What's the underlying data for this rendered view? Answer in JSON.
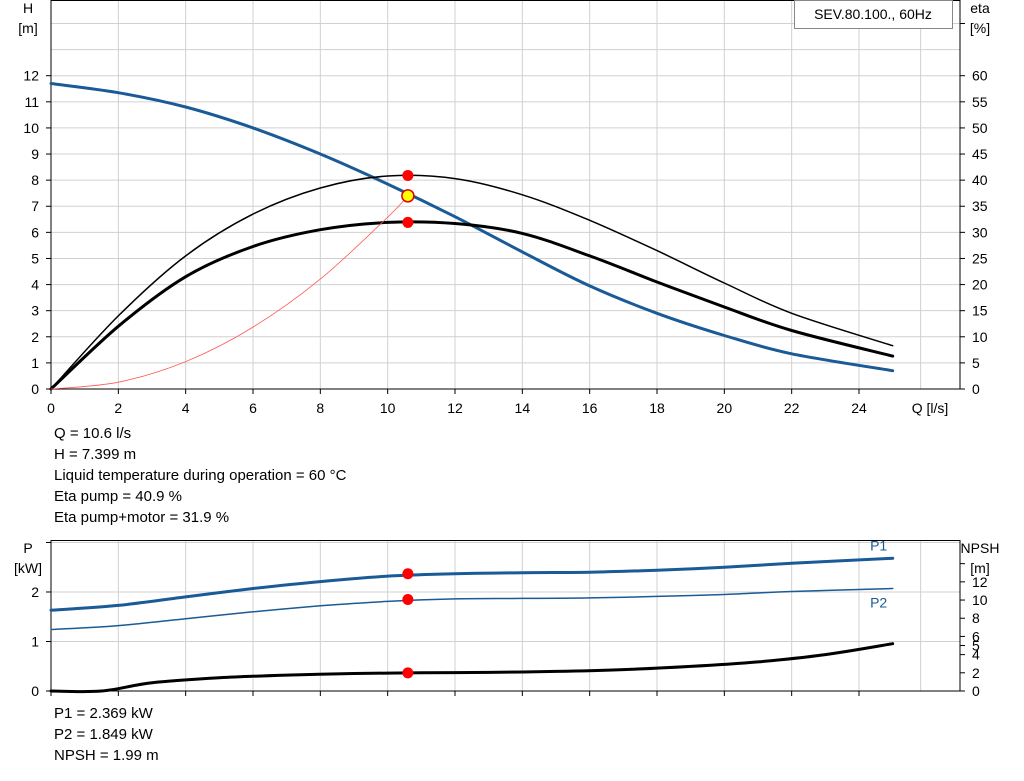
{
  "title_box": "SEV.80.100., 60Hz",
  "info_lines": [
    "Q = 10.6 l/s",
    "H = 7.399 m",
    "Liquid temperature during operation = 60 °C",
    "Eta pump = 40.9 %",
    "Eta pump+motor = 31.9 %"
  ],
  "bottom_info_lines": [
    "P1 = 2.369 kW",
    "P2 = 1.849 kW",
    "NPSH = 1.99 m"
  ],
  "colors": {
    "head": "#1a5a96",
    "eta": "#000000",
    "system": "#ff5a5a",
    "power": "#1a5a96",
    "npsh": "#000000",
    "marker": "#ff0000",
    "duty": "#ffff00",
    "grid": "#d0d0d0"
  },
  "chart_data": [
    {
      "type": "line",
      "name": "head-efficiency",
      "x_label": "Q [l/s]",
      "x_ticks": [
        0,
        2,
        4,
        6,
        8,
        10,
        12,
        14,
        16,
        18,
        20,
        22,
        24
      ],
      "xlim": [
        0,
        27
      ],
      "y_left_label": [
        "H",
        "[m]"
      ],
      "y_left_ticks": [
        0,
        1,
        2,
        3,
        4,
        5,
        6,
        7,
        8,
        9,
        10,
        11,
        12
      ],
      "y_left_lim": [
        0,
        14.9
      ],
      "y_right_label": [
        "eta",
        "[%]"
      ],
      "y_right_ticks": [
        0,
        5,
        10,
        15,
        20,
        25,
        30,
        35,
        40,
        45,
        50,
        55,
        60
      ],
      "y_right_lim": [
        0,
        74.5
      ],
      "grid": true,
      "series": [
        {
          "key": "head",
          "axis": "left",
          "width": 3,
          "x": [
            0,
            2,
            4,
            6,
            8,
            10,
            12,
            14,
            16,
            18,
            20,
            22,
            25
          ],
          "y": [
            11.7,
            11.35,
            10.8,
            10.0,
            9.0,
            7.85,
            6.6,
            5.25,
            3.95,
            2.9,
            2.05,
            1.35,
            0.7
          ]
        },
        {
          "key": "eta",
          "axis": "right",
          "width": 1.5,
          "x": [
            0,
            2,
            4,
            6,
            8,
            10,
            12,
            14,
            16,
            18,
            20,
            22,
            25
          ],
          "y": [
            0,
            14,
            25.5,
            33.5,
            38.5,
            40.8,
            40.3,
            37.2,
            32.3,
            26.5,
            20.3,
            14.5,
            8.3
          ]
        },
        {
          "key": "eta",
          "axis": "right",
          "width": 3,
          "x": [
            0,
            2,
            4,
            6,
            8,
            10,
            12,
            14,
            16,
            18,
            20,
            22,
            25
          ],
          "y": [
            0,
            12,
            21.5,
            27.3,
            30.5,
            31.9,
            31.7,
            29.8,
            25.5,
            20.5,
            15.7,
            11.2,
            6.3
          ]
        },
        {
          "key": "system",
          "axis": "left",
          "width": 0.8,
          "x": [
            0,
            2,
            4,
            6,
            8,
            10,
            10.6
          ],
          "y": [
            0,
            0.26,
            1.05,
            2.37,
            4.21,
            6.58,
            7.399
          ]
        }
      ],
      "points": [
        {
          "x": 10.6,
          "y": 40.9,
          "axis": "right",
          "color": "marker"
        },
        {
          "x": 10.6,
          "y": 31.9,
          "axis": "right",
          "color": "marker"
        },
        {
          "x": 10.6,
          "y": 7.399,
          "axis": "left",
          "color": "duty"
        }
      ],
      "text_box": "title_box"
    },
    {
      "type": "line",
      "name": "power-npsh",
      "x_ticks": [
        0,
        2,
        4,
        6,
        8,
        10,
        12,
        14,
        16,
        18,
        20,
        22,
        24
      ],
      "xlim": [
        0,
        27
      ],
      "y_left_label": [
        "P",
        "[kW]"
      ],
      "y_left_ticks": [
        0,
        1,
        2
      ],
      "y_left_lim": [
        0,
        3.05
      ],
      "y_right_label": [
        "NPSH",
        "[m]"
      ],
      "y_right_ticks": [
        0,
        2,
        4,
        5,
        6,
        8,
        10,
        12
      ],
      "y_right_lim": [
        0,
        16.6
      ],
      "grid": true,
      "series": [
        {
          "key": "power",
          "axis": "left",
          "width": 3,
          "name": "P1",
          "x": [
            0,
            2,
            4,
            6,
            8,
            10,
            12,
            14,
            16,
            18,
            20,
            22,
            25
          ],
          "y": [
            1.63,
            1.73,
            1.9,
            2.07,
            2.21,
            2.32,
            2.37,
            2.39,
            2.4,
            2.44,
            2.5,
            2.58,
            2.68
          ]
        },
        {
          "key": "power",
          "axis": "left",
          "width": 1.5,
          "name": "P2",
          "x": [
            0,
            2,
            4,
            6,
            8,
            10,
            12,
            14,
            16,
            18,
            20,
            22,
            25
          ],
          "y": [
            1.24,
            1.32,
            1.46,
            1.6,
            1.72,
            1.81,
            1.86,
            1.87,
            1.88,
            1.91,
            1.95,
            2.01,
            2.07
          ]
        },
        {
          "key": "npsh",
          "axis": "right",
          "width": 3,
          "x": [
            0,
            1.5,
            3,
            5,
            7,
            9,
            11,
            13,
            15,
            17,
            19,
            21,
            23,
            25
          ],
          "y": [
            0,
            0,
            0.9,
            1.45,
            1.75,
            1.92,
            2.0,
            2.05,
            2.15,
            2.35,
            2.7,
            3.2,
            4.0,
            5.2
          ]
        }
      ],
      "points": [
        {
          "x": 10.6,
          "y": 2.369,
          "axis": "left",
          "color": "marker"
        },
        {
          "x": 10.6,
          "y": 1.849,
          "axis": "left",
          "color": "marker"
        },
        {
          "x": 10.6,
          "y": 1.99,
          "axis": "right",
          "color": "marker"
        }
      ]
    }
  ]
}
